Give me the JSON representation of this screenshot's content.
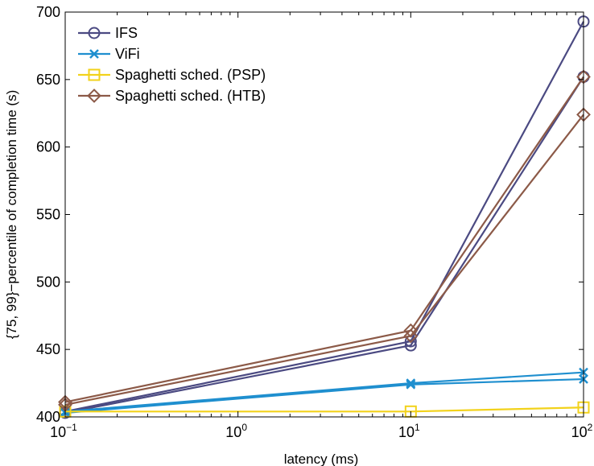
{
  "chart_data": {
    "type": "line",
    "xlabel": "latency (ms)",
    "ylabel": "{75, 99}−percentile of completion time (s)",
    "x_scale": "log",
    "x": [
      0.1,
      10,
      100
    ],
    "xlim": [
      0.1,
      100
    ],
    "ylim": [
      400,
      700
    ],
    "x_ticks": [
      {
        "value": 0.1,
        "base": "10",
        "exp": "−1"
      },
      {
        "value": 1,
        "base": "10",
        "exp": "0"
      },
      {
        "value": 10,
        "base": "10",
        "exp": "1"
      },
      {
        "value": 100,
        "base": "10",
        "exp": "2"
      }
    ],
    "y_ticks": [
      400,
      450,
      500,
      550,
      600,
      650,
      700
    ],
    "grid": false,
    "legend_position": "top-left",
    "series": [
      {
        "name": "IFS",
        "color": "#4b4a82",
        "marker": "circle",
        "values": [
          403,
          453,
          652
        ]
      },
      {
        "name": "IFS",
        "color": "#4b4a82",
        "marker": "circle",
        "values": [
          404,
          456,
          693
        ],
        "legend": false
      },
      {
        "name": "ViFi",
        "color": "#1f8fcf",
        "marker": "x",
        "values": [
          403,
          424,
          428
        ]
      },
      {
        "name": "ViFi",
        "color": "#1f8fcf",
        "marker": "x",
        "values": [
          404,
          425,
          433
        ],
        "legend": false
      },
      {
        "name": "Spaghetti sched. (PSP)",
        "color": "#f2d21b",
        "marker": "square",
        "values": [
          404,
          404,
          407
        ]
      },
      {
        "name": "Spaghetti sched. (HTB)",
        "color": "#8c5a48",
        "marker": "diamond",
        "values": [
          409,
          460,
          624
        ]
      },
      {
        "name": "Spaghetti sched. (HTB)",
        "color": "#8c5a48",
        "marker": "diamond",
        "values": [
          411,
          464,
          652
        ],
        "legend": false
      }
    ]
  }
}
